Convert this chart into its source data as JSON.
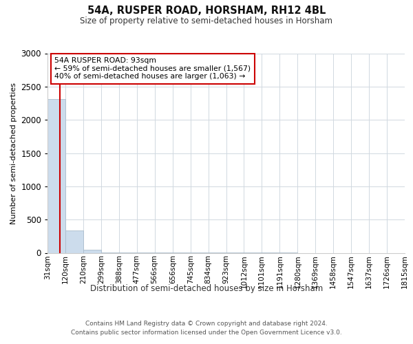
{
  "title": "54A, RUSPER ROAD, HORSHAM, RH12 4BL",
  "subtitle": "Size of property relative to semi-detached houses in Horsham",
  "xlabel": "Distribution of semi-detached houses by size in Horsham",
  "ylabel": "Number of semi-detached properties",
  "bar_color": "#ccdcec",
  "bar_edge_color": "#aabccc",
  "property_line_color": "#cc0000",
  "property_value": 93,
  "annotation_line1": "54A RUSPER ROAD: 93sqm",
  "annotation_line2": "← 59% of semi-detached houses are smaller (1,567)",
  "annotation_line3": "40% of semi-detached houses are larger (1,063) →",
  "bin_edges": [
    31,
    120,
    210,
    299,
    388,
    477,
    566,
    656,
    745,
    834,
    923,
    1012,
    1101,
    1191,
    1280,
    1369,
    1458,
    1547,
    1637,
    1726,
    1815
  ],
  "bin_labels": [
    "31sqm",
    "120sqm",
    "210sqm",
    "299sqm",
    "388sqm",
    "477sqm",
    "566sqm",
    "656sqm",
    "745sqm",
    "834sqm",
    "923sqm",
    "1012sqm",
    "1101sqm",
    "1191sqm",
    "1280sqm",
    "1369sqm",
    "1458sqm",
    "1547sqm",
    "1637sqm",
    "1726sqm",
    "1815sqm"
  ],
  "bar_heights": [
    2310,
    335,
    50,
    10,
    8,
    6,
    5,
    4,
    3,
    2,
    2,
    1,
    1,
    1,
    0,
    0,
    0,
    0,
    0,
    0
  ],
  "ylim": [
    0,
    3000
  ],
  "yticks": [
    0,
    500,
    1000,
    1500,
    2000,
    2500,
    3000
  ],
  "footer_line1": "Contains HM Land Registry data © Crown copyright and database right 2024.",
  "footer_line2": "Contains public sector information licensed under the Open Government Licence v3.0.",
  "background_color": "#ffffff",
  "grid_color": "#d0d8e0"
}
